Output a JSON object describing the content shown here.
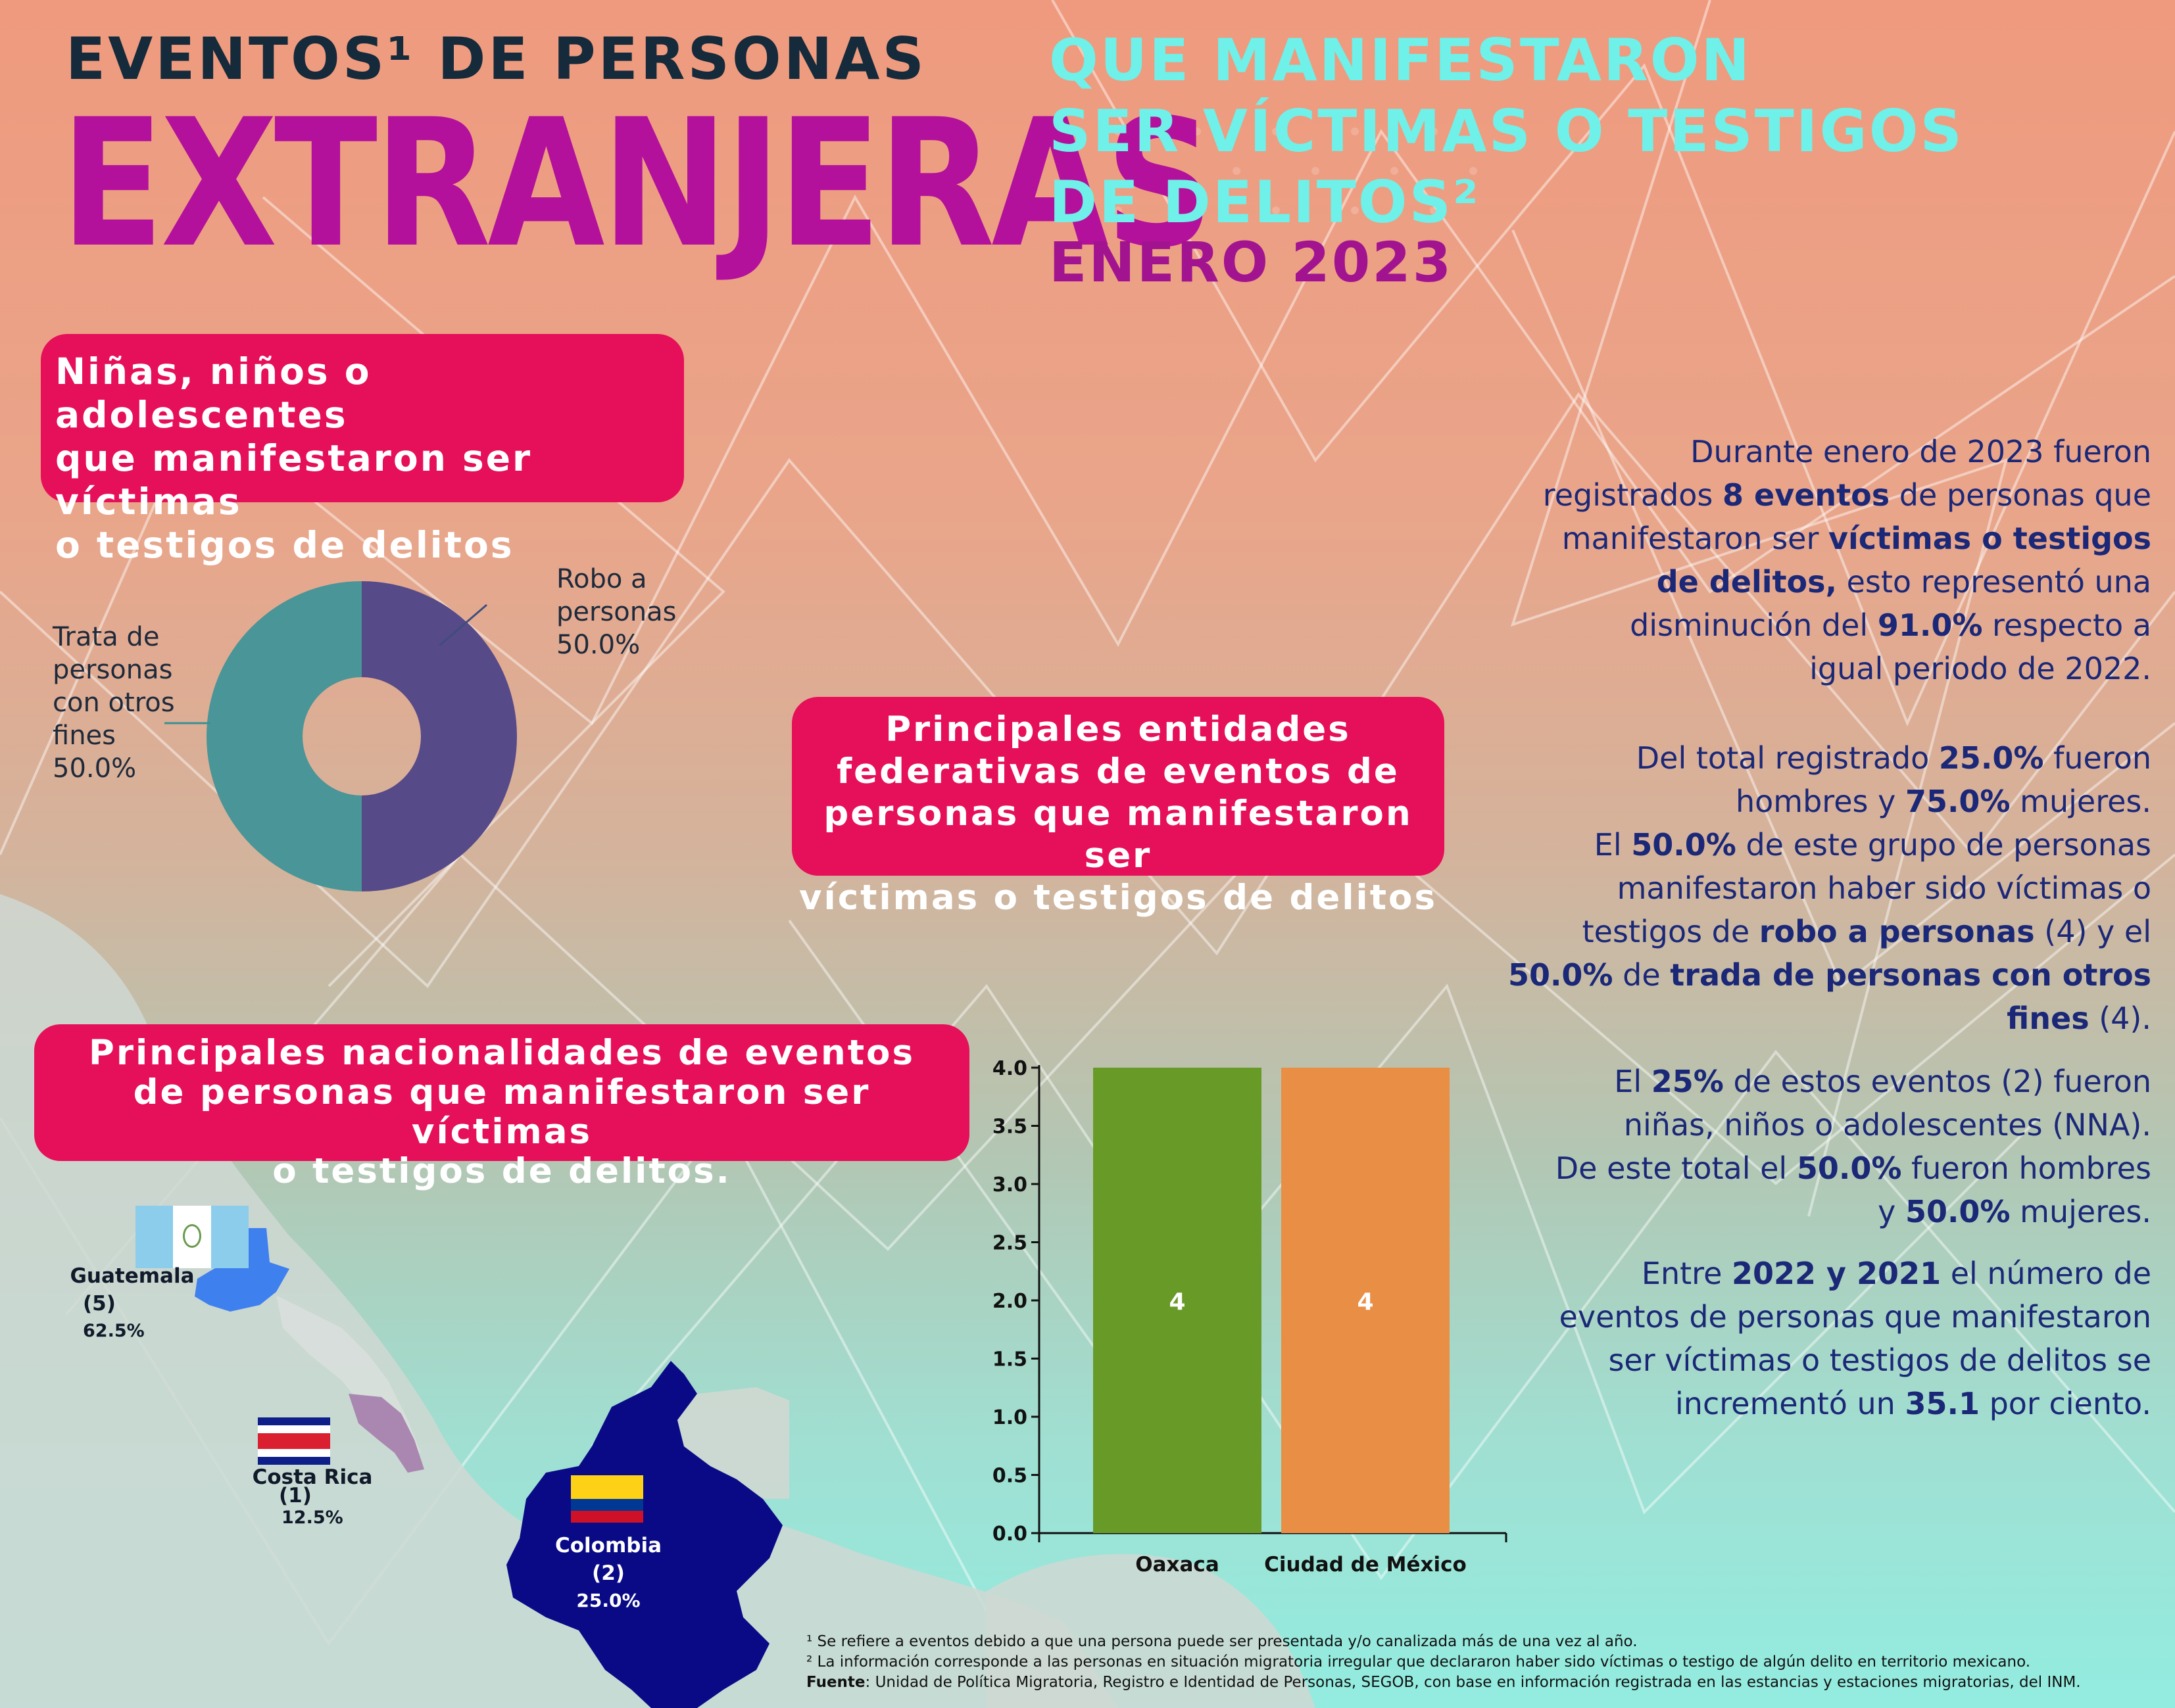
{
  "header": {
    "line1": "EVENTOS¹ DE PERSONAS",
    "line2": "EXTRANJERAS",
    "line3": [
      "QUE MANIFESTARON",
      "SER VÍCTIMAS O TESTIGOS",
      "DE DELITOS²"
    ],
    "period": "ENERO 2023"
  },
  "nna_box": {
    "lines": [
      "Niñas, niños o adolescentes",
      "que manifestaron ser víctimas",
      "o testigos de delitos"
    ]
  },
  "entidades_box": {
    "lines": [
      "Principales entidades",
      "federativas de eventos de",
      "personas que manifestaron ser",
      "víctimas o testigos de delitos"
    ]
  },
  "nacionalidades_box": {
    "lines": [
      "Principales nacionalidades de eventos",
      "de personas que manifestaron ser víctimas",
      "o testigos de delitos."
    ]
  },
  "pie_labels": {
    "robo": [
      "Robo a",
      "personas",
      "50.0%"
    ],
    "trata": [
      "Trata de",
      "personas",
      "con otros",
      "fines",
      "50.0%"
    ]
  },
  "map": {
    "guatemala": {
      "name": "Guatemala",
      "count": "(5)",
      "pct": "62.5%"
    },
    "costa_rica": {
      "name": "Costa Rica",
      "count": "(1)",
      "pct": "12.5%"
    },
    "colombia": {
      "name": "Colombia",
      "count": "(2)",
      "pct": "25.0%"
    }
  },
  "summary": {
    "p1": {
      "t1": "Durante enero de 2023  fueron",
      "t2": "registrados ",
      "b1": "8 eventos",
      "t3": " de personas que",
      "t4": "manifestaron ser ",
      "b2": "víctimas o testigos",
      "b3": "de delitos,",
      "t5": " esto representó una",
      "t6": "disminución  del ",
      "b4": "91.0%",
      "t7": " respecto a",
      "t8": "igual periodo de 2022."
    },
    "p2": {
      "t1": "Del total registrado ",
      "b1": "25.0%",
      "t2": " fueron",
      "t3": "hombres y ",
      "b2": "75.0%",
      "t4": " mujeres.",
      "t5": "El ",
      "b3": "50.0%",
      "t6": " de este grupo de personas",
      "t7": "manifestaron haber sido víctimas o",
      "t8": "testigos de ",
      "b4": "robo a personas",
      "t9": " (4) y el",
      "b5": "50.0%",
      "t10": " de ",
      "b6": "trada de personas con otros",
      "b7": "fines",
      "t11": " (4)."
    },
    "p3": {
      "t1": "El ",
      "b1": "25%",
      "t2": " de estos eventos (2) fueron",
      "t3": "niñas, niños o adolescentes (NNA).",
      "t4": "De este total el ",
      "b2": "50.0%",
      "t5": " fueron hombres",
      "t6": "y ",
      "b3": "50.0%",
      "t7": " mujeres."
    },
    "p4": {
      "t1": "Entre ",
      "b1": "2022 y 2021",
      "t2": " el número de",
      "t3": "eventos de personas que manifestaron",
      "t4": "ser víctimas o testigos de delitos se",
      "t5": "incrementó un ",
      "b2": "35.1",
      "t6": " por ciento."
    }
  },
  "footnotes": {
    "f1": "¹ Se refiere a eventos debido a que una persona puede ser presentada y/o canalizada más de una vez al año.",
    "f2": "² La información corresponde a las personas en situación migratoria irregular que declararon haber sido víctimas o testigo de algún delito en territorio mexicano.",
    "source_label": "Fuente",
    "source": ": Unidad de Política Migratoria, Registro e Identidad de Personas, SEGOB, con base en información registrada en las estancias y estaciones migratorias, del INM."
  },
  "colors": {
    "pink_box": "#e60f59",
    "magenta_title": "#b3119b",
    "cyan_title": "#6ff0e8",
    "text_navy": "#1b2877",
    "donut_purple": "#574a88",
    "donut_teal": "#4a9597",
    "bar_green": "#689a28",
    "bar_orange": "#e98e45"
  },
  "chart_data": [
    {
      "type": "pie",
      "variant": "donut",
      "categories": [
        "Robo a personas",
        "Trata de personas con otros fines"
      ],
      "values": [
        50.0,
        50.0
      ]
    },
    {
      "type": "bar",
      "categories": [
        "Oaxaca",
        "Ciudad de México"
      ],
      "values": [
        4,
        4
      ],
      "ylim": [
        0,
        4.0
      ],
      "yticks": [
        "0.0",
        "0.5",
        "1.0",
        "1.5",
        "2.0",
        "2.5",
        "3.0",
        "3.5",
        "4.0"
      ],
      "data_labels": [
        "4",
        "4"
      ],
      "grid": false
    }
  ]
}
